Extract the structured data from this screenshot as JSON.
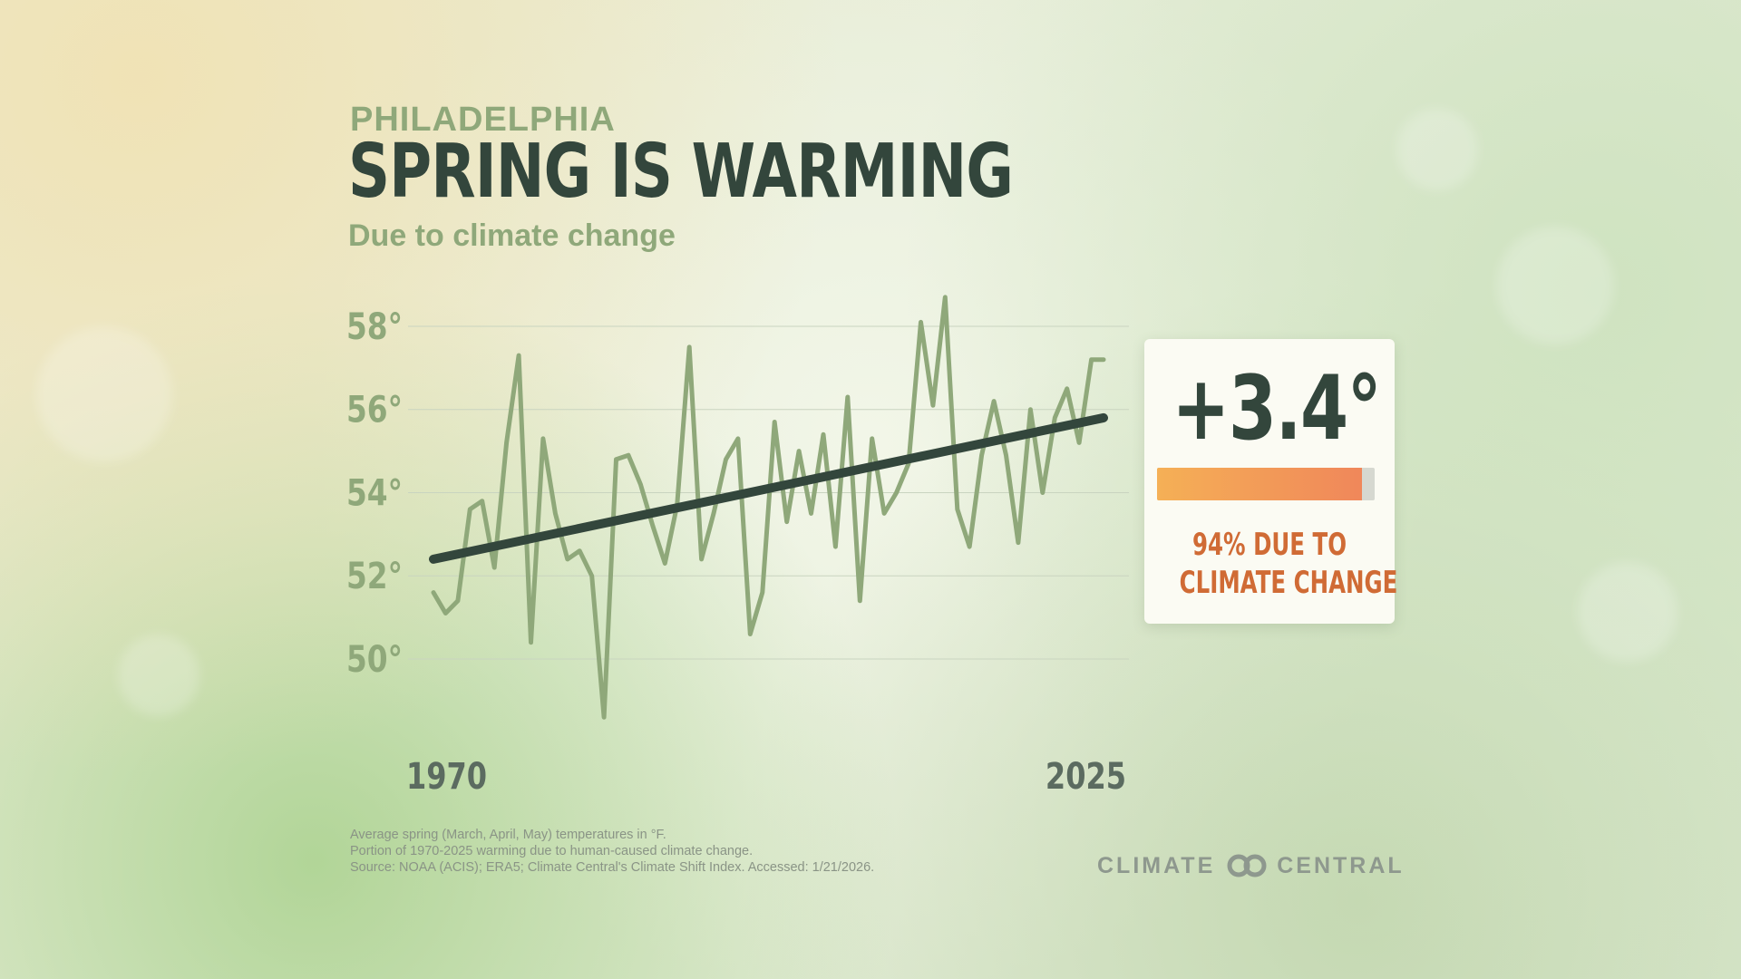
{
  "header": {
    "city": "PHILADELPHIA",
    "title": "SPRING IS WARMING",
    "subtitle": "Due to climate change"
  },
  "chart_data": {
    "type": "line",
    "x_start": 1970,
    "x_end": 2025,
    "xtick_labels": [
      "1970",
      "2025"
    ],
    "ytick_values": [
      50,
      52,
      54,
      56,
      58
    ],
    "ytick_labels": [
      "50°",
      "52°",
      "54°",
      "56°",
      "58°"
    ],
    "ylim": [
      49,
      58.6
    ],
    "grid": true,
    "series": [
      {
        "role": "annual",
        "color": "#8fa87a",
        "values": [
          51.6,
          51.1,
          51.4,
          53.6,
          53.8,
          52.2,
          55.2,
          57.3,
          50.4,
          55.3,
          53.5,
          52.4,
          52.6,
          52.0,
          48.6,
          54.8,
          54.9,
          54.2,
          53.2,
          52.3,
          53.7,
          57.5,
          52.4,
          53.5,
          54.8,
          55.3,
          50.6,
          51.6,
          55.7,
          53.3,
          55.0,
          53.5,
          55.4,
          52.7,
          56.3,
          51.4,
          55.3,
          53.5,
          54.0,
          54.7,
          58.1,
          56.1,
          58.7,
          53.6,
          52.7,
          54.9,
          56.2,
          54.9,
          52.8,
          56.0,
          54.0,
          55.8,
          56.5,
          55.2,
          57.2,
          57.2
        ]
      },
      {
        "role": "trend",
        "color": "#33463c",
        "x": [
          1970,
          2025
        ],
        "values": [
          52.4,
          55.8
        ]
      }
    ]
  },
  "callout": {
    "value": "+3.4°",
    "percent_attributed": 94,
    "caption_line1": "94% DUE TO",
    "caption_line2": "CLIMATE CHANGE",
    "bar_colors": [
      "#f5b056",
      "#f0875a"
    ]
  },
  "footnotes": {
    "line1": "Average spring (March, April, May) temperatures in °F.",
    "line2": "Portion of 1970-2025 warming due to human-caused climate change.",
    "line3": "Source: NOAA (ACIS); ERA5; Climate Central's Climate Shift Index. Accessed: 1/21/2026."
  },
  "logo": {
    "word1": "CLIMATE",
    "word2": "CENTRAL",
    "icon": "interlocked-rings-icon"
  }
}
